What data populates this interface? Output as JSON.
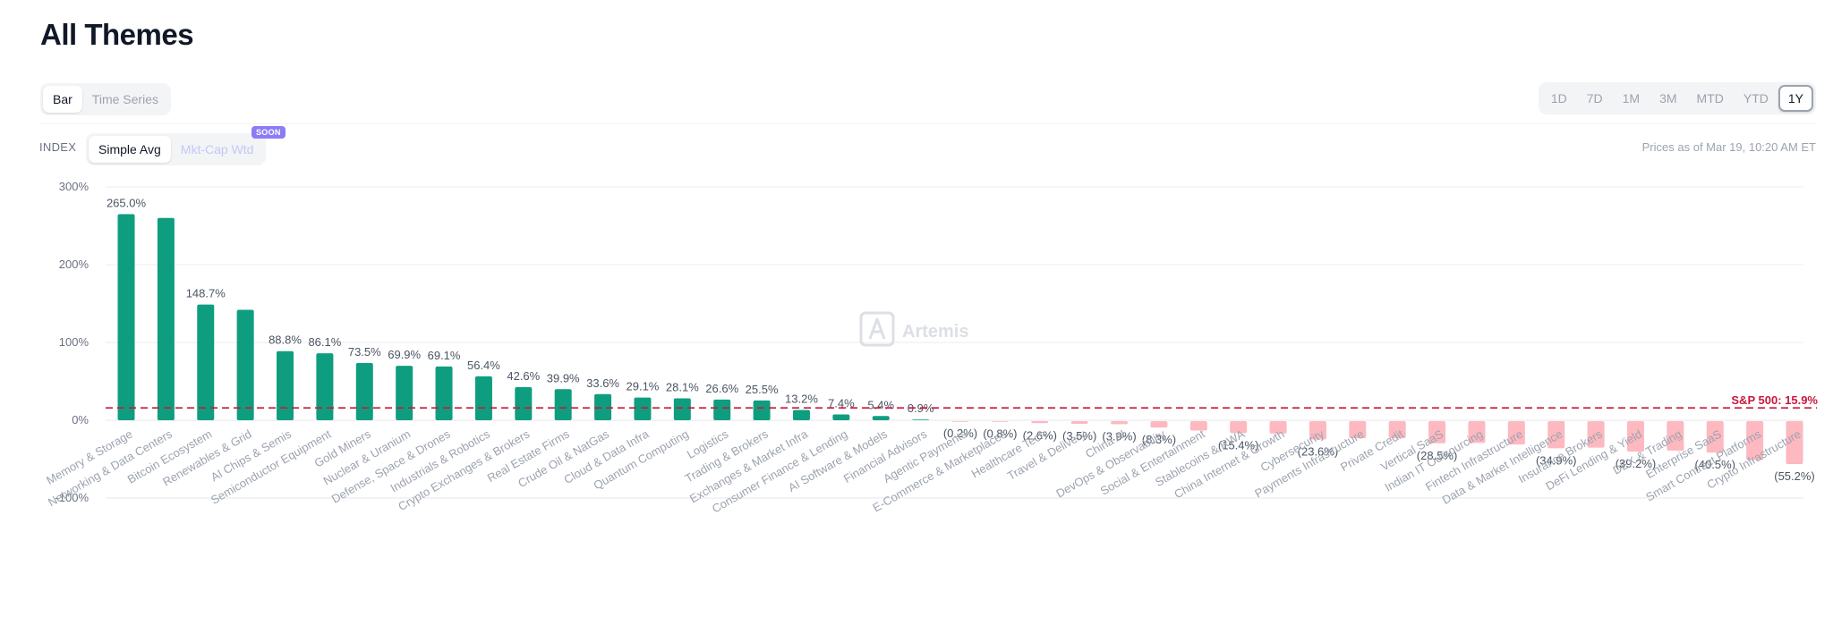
{
  "page": {
    "title": "All Themes"
  },
  "chart_type_toggle": {
    "options": [
      "Bar",
      "Time Series"
    ],
    "selected": "Bar"
  },
  "timeframe_toggle": {
    "options": [
      "1D",
      "7D",
      "1M",
      "3M",
      "MTD",
      "YTD",
      "1Y"
    ],
    "selected": "1Y"
  },
  "index_toggle": {
    "label": "INDEX",
    "options": [
      "Simple Avg",
      "Mkt-Cap Wtd"
    ],
    "selected": "Simple Avg",
    "badge": "SOON"
  },
  "prices_as_of": "Prices as of Mar 19, 10:20 AM ET",
  "watermark": "Artemis",
  "colors": {
    "positive": "#0e9e7f",
    "negative": "#fdb8c0",
    "benchmark": "#c8183d",
    "grid": "#eceef1"
  },
  "chart_data": {
    "type": "bar",
    "ylim": [
      -100,
      300
    ],
    "yticks": [
      {
        "value": 300,
        "label": "300%"
      },
      {
        "value": 200,
        "label": "200%"
      },
      {
        "value": 100,
        "label": "100%"
      },
      {
        "value": 0,
        "label": "0%"
      },
      {
        "value": -100,
        "label": "-100%"
      }
    ],
    "grid": true,
    "benchmark": {
      "value": 15.9,
      "label": "S&P 500: 15.9%"
    },
    "categories": [
      "Memory & Storage",
      "Networking & Data Centers",
      "Bitcoin Ecosystem",
      "Renewables & Grid",
      "AI Chips & Semis",
      "Semiconductor Equipment",
      "Gold Miners",
      "Nuclear & Uranium",
      "Defense, Space & Drones",
      "Industrials & Robotics",
      "Crypto Exchanges & Brokers",
      "Real Estate Firms",
      "Crude Oil & NatGas",
      "Cloud & Data Infra",
      "Quantum Computing",
      "Logistics",
      "Trading & Brokers",
      "Exchanges & Market Infra",
      "Consumer Finance & Lending",
      "AI Software & Models",
      "Financial Advisors",
      "Agentic Payments",
      "E-Commerce & Marketplaces",
      "Healthcare Tech",
      "Travel & Delivery",
      "China AI",
      "DevOps & Observability",
      "Social & Entertainment",
      "Stablecoins & RWA",
      "China Internet & Growth",
      "Cybersecurity",
      "Payments Infrastructure",
      "Private Credit",
      "Vertical SaaS",
      "Indian IT Outsourcing",
      "Fintech Infrastructure",
      "Data & Market Intelligence",
      "Insurance Brokers",
      "DeFi Lending & Yield",
      "DEX & Trading",
      "Enterprise SaaS",
      "Smart Contract Platforms",
      "Crypto Infrastructure"
    ],
    "values": [
      265.0,
      260,
      148.7,
      142,
      88.8,
      86.1,
      73.5,
      69.9,
      69.1,
      56.4,
      42.6,
      39.9,
      33.6,
      29.1,
      28.1,
      26.6,
      25.5,
      13.2,
      7.4,
      5.4,
      0.9,
      -0.2,
      -0.8,
      -2.6,
      -3.5,
      -3.9,
      -8.3,
      -12,
      -15.4,
      -16,
      -23.6,
      -22,
      -22,
      -28.5,
      -28,
      -30,
      -34.9,
      -34,
      -39.2,
      -38,
      -40.5,
      -50,
      -55.2
    ],
    "data_labels": [
      "265.0%",
      "",
      "148.7%",
      "",
      "88.8%",
      "86.1%",
      "73.5%",
      "69.9%",
      "69.1%",
      "56.4%",
      "42.6%",
      "39.9%",
      "33.6%",
      "29.1%",
      "28.1%",
      "26.6%",
      "25.5%",
      "13.2%",
      "7.4%",
      "5.4%",
      "0.9%",
      "(0.2%)",
      "(0.8%)",
      "(2.6%)",
      "(3.5%)",
      "(3.9%)",
      "(8.3%)",
      "",
      "(15.4%)",
      "",
      "(23.6%)",
      "",
      "",
      "(28.5%)",
      "",
      "",
      "(34.9%)",
      "",
      "(39.2%)",
      "",
      "(40.5%)",
      "",
      "(55.2%)"
    ]
  }
}
